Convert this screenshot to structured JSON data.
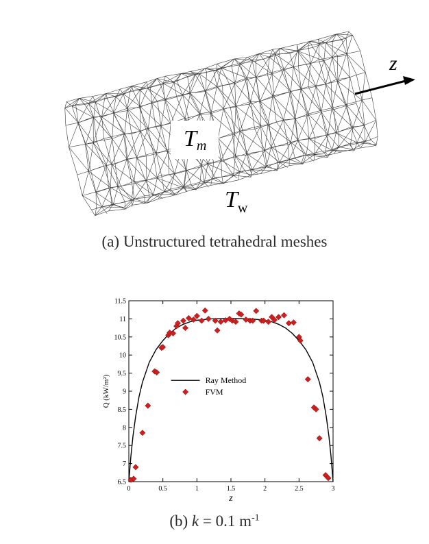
{
  "panel_a": {
    "caption": "(a) Unstructured tetrahedral meshes",
    "label_tm_main": "T",
    "label_tm_sub": "m",
    "label_tw_main": "T",
    "label_tw_sub": "w",
    "axis_label": "z"
  },
  "panel_b": {
    "caption_prefix": "(b) ",
    "caption_k": "k",
    "caption_rest": " = 0.1 m",
    "caption_sup": "-1"
  },
  "chart_data": {
    "type": "line",
    "title": "",
    "xlabel": "z",
    "ylabel": "Q (kW/m²)",
    "xlim": [
      0,
      3
    ],
    "ylim": [
      6.5,
      11.5
    ],
    "xticks": [
      "0",
      "0.5",
      "1",
      "1.5",
      "2",
      "2.5",
      "3"
    ],
    "yticks": [
      "6.5",
      "7",
      "7.5",
      "8",
      "8.5",
      "9",
      "9.5",
      "10",
      "10.5",
      "11",
      "11.5"
    ],
    "legend_position": "center",
    "series": [
      {
        "name": "Ray Method",
        "kind": "line",
        "color": "#000000",
        "x": [
          0,
          0.03,
          0.06,
          0.1,
          0.15,
          0.2,
          0.3,
          0.4,
          0.5,
          0.6,
          0.7,
          0.8,
          0.9,
          1.0,
          1.2,
          1.4,
          1.5,
          1.6,
          1.8,
          2.0,
          2.1,
          2.2,
          2.3,
          2.4,
          2.5,
          2.6,
          2.7,
          2.8,
          2.85,
          2.9,
          2.94,
          2.97,
          3.0
        ],
        "y": [
          6.5,
          7.2,
          7.75,
          8.3,
          8.85,
          9.25,
          9.8,
          10.15,
          10.4,
          10.6,
          10.75,
          10.85,
          10.92,
          10.96,
          11.0,
          11.01,
          11.01,
          11.01,
          11.0,
          10.96,
          10.92,
          10.85,
          10.75,
          10.6,
          10.4,
          10.15,
          9.8,
          9.25,
          8.85,
          8.3,
          7.75,
          7.2,
          6.5
        ]
      },
      {
        "name": "FVM",
        "kind": "scatter",
        "color": "#cc1f1f",
        "x": [
          0.03,
          0.07,
          0.1,
          0.2,
          0.28,
          0.38,
          0.41,
          0.48,
          0.5,
          0.58,
          0.6,
          0.65,
          0.7,
          0.72,
          0.8,
          0.83,
          0.88,
          0.95,
          1.0,
          1.07,
          1.12,
          1.17,
          1.27,
          1.3,
          1.35,
          1.42,
          1.48,
          1.52,
          1.57,
          1.62,
          1.65,
          1.72,
          1.78,
          1.82,
          1.87,
          1.95,
          1.98,
          2.05,
          2.1,
          2.14,
          2.2,
          2.28,
          2.35,
          2.42,
          2.5,
          2.52,
          2.63,
          2.72,
          2.75,
          2.8,
          2.89,
          2.93
        ],
        "y": [
          6.55,
          6.58,
          6.9,
          7.85,
          8.6,
          9.55,
          9.52,
          10.2,
          10.22,
          10.55,
          10.62,
          10.6,
          10.8,
          10.88,
          10.95,
          10.75,
          11.02,
          10.98,
          11.08,
          10.95,
          11.23,
          11.0,
          10.95,
          10.68,
          10.92,
          10.96,
          11.0,
          10.95,
          10.92,
          11.15,
          11.12,
          10.98,
          10.95,
          10.95,
          11.22,
          10.95,
          10.95,
          10.92,
          11.05,
          10.97,
          11.05,
          11.1,
          10.88,
          10.9,
          10.5,
          10.4,
          9.33,
          8.55,
          8.5,
          7.7,
          6.68,
          6.6
        ]
      }
    ]
  }
}
